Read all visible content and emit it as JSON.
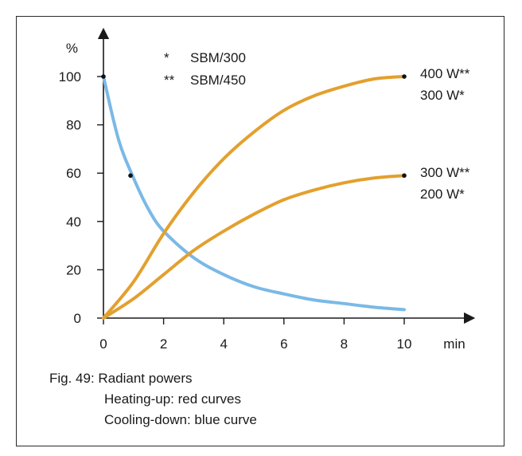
{
  "chart_data": {
    "type": "line",
    "y_unit": "%",
    "x_unit": "min",
    "xlim": [
      0,
      10
    ],
    "ylim": [
      0,
      100
    ],
    "x_ticks": [
      0,
      2,
      4,
      6,
      8,
      10
    ],
    "y_ticks": [
      0,
      20,
      40,
      60,
      80,
      100
    ],
    "legend_notes": [
      {
        "symbol": "*",
        "text": "SBM/300"
      },
      {
        "symbol": "**",
        "text": "SBM/450"
      }
    ],
    "series": [
      {
        "color": "#e3a02e",
        "end_label": [
          "400 W**",
          "300 W*"
        ],
        "x": [
          0,
          1,
          2,
          3,
          4,
          5,
          6,
          7,
          8,
          9,
          10
        ],
        "y": [
          0,
          15,
          35,
          52,
          66,
          77,
          86,
          92,
          96,
          99,
          100
        ]
      },
      {
        "color": "#e3a02e",
        "end_label": [
          "300 W**",
          "200 W*"
        ],
        "x": [
          0,
          1,
          2,
          3,
          4,
          5,
          6,
          7,
          8,
          9,
          10
        ],
        "y": [
          0,
          8,
          18,
          28,
          36,
          43,
          49,
          53,
          56,
          58,
          59
        ]
      },
      {
        "color": "#7ab9e6",
        "x": [
          0,
          0.5,
          1,
          1.5,
          2,
          3,
          4,
          5,
          6,
          7,
          8,
          9,
          10
        ],
        "y": [
          100,
          74,
          58,
          45,
          36,
          25,
          18,
          13,
          10,
          7.5,
          6,
          4.5,
          3.5
        ]
      }
    ],
    "marked_points": [
      {
        "x": 0,
        "y": 100
      },
      {
        "x": 0.9,
        "y": 59
      },
      {
        "x": 10,
        "y": 100
      },
      {
        "x": 10,
        "y": 59
      }
    ]
  },
  "caption": {
    "line1": "Fig. 49:  Radiant powers",
    "line2": "Heating-up: red curves",
    "line3": "Cooling-down: blue curve"
  }
}
